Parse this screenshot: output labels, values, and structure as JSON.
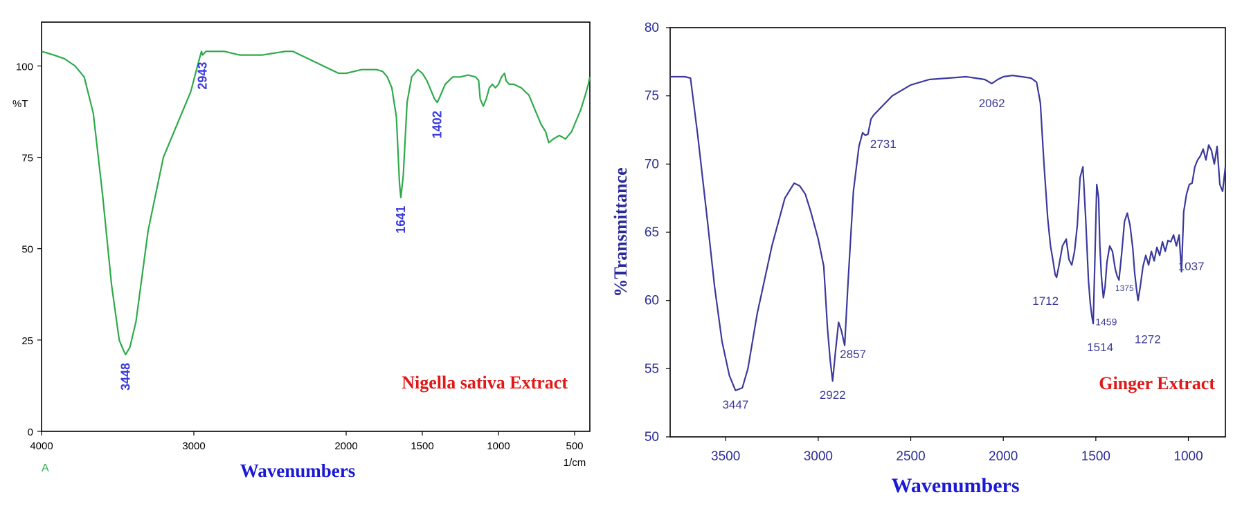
{
  "chart_data": [
    {
      "type": "line",
      "panel": "left",
      "ylabel": "%T",
      "xlabel": "Wavenumbers",
      "xunit": "1/cm",
      "corner_label": "A",
      "annotation": "Nigella sativa Extract",
      "xlim": [
        4000,
        400
      ],
      "ylim": [
        0,
        112
      ],
      "xticks": [
        4000,
        3000,
        2000,
        1500,
        1000,
        500
      ],
      "yticks": [
        0,
        25,
        50,
        75,
        100
      ],
      "line_color": "#2eaa4a",
      "label_color": "#3a3adf",
      "annotation_color": "#e01818",
      "peaks": [
        {
          "label": "3448",
          "x": 3448,
          "y": 21
        },
        {
          "label": "2943",
          "x": 2943,
          "y": 103
        },
        {
          "label": "1641",
          "x": 1641,
          "y": 64
        },
        {
          "label": "1402",
          "x": 1402,
          "y": 90
        }
      ],
      "series": [
        {
          "x": [
            4000,
            3920,
            3850,
            3780,
            3720,
            3660,
            3600,
            3540,
            3490,
            3460,
            3448,
            3420,
            3380,
            3300,
            3200,
            3100,
            3020,
            2970,
            2950,
            2943,
            2920,
            2880,
            2800,
            2700,
            2550,
            2400,
            2350,
            2300,
            2200,
            2100,
            2050,
            2000,
            1950,
            1900,
            1850,
            1800,
            1760,
            1730,
            1700,
            1670,
            1650,
            1641,
            1625,
            1600,
            1570,
            1530,
            1500,
            1470,
            1440,
            1420,
            1402,
            1380,
            1350,
            1300,
            1250,
            1200,
            1150,
            1130,
            1120,
            1100,
            1080,
            1060,
            1040,
            1020,
            1000,
            980,
            960,
            950,
            930,
            900,
            850,
            800,
            760,
            720,
            690,
            670,
            640,
            600,
            560,
            520,
            500,
            460,
            430,
            410,
            400
          ],
          "y": [
            104,
            103,
            102,
            100,
            97,
            87,
            65,
            40,
            25,
            22,
            21,
            23,
            30,
            55,
            75,
            85,
            93,
            101,
            104,
            103,
            104,
            104,
            104,
            103,
            103,
            104,
            104,
            103,
            101,
            99,
            98,
            98,
            98.5,
            99,
            99,
            99,
            98.5,
            97,
            94,
            86,
            68,
            64,
            70,
            90,
            97,
            99,
            98,
            96,
            93,
            91,
            90,
            92,
            95,
            97,
            97,
            97.5,
            97,
            96,
            91,
            89,
            91,
            94,
            95,
            94,
            95,
            97,
            98,
            96,
            95,
            95,
            94,
            92,
            88,
            84,
            82,
            79,
            80,
            81,
            80,
            82,
            84,
            88,
            92,
            95,
            97
          ]
        }
      ]
    },
    {
      "type": "line",
      "panel": "right",
      "ylabel": "%Transmittance",
      "xlabel": "Wavenumbers",
      "annotation": "Ginger Extract",
      "xlim": [
        3800,
        800
      ],
      "ylim": [
        50,
        80
      ],
      "xticks": [
        3500,
        3000,
        2500,
        2000,
        1500,
        1000
      ],
      "yticks": [
        50,
        55,
        60,
        65,
        70,
        75,
        80
      ],
      "line_color": "#3b3a9c",
      "label_color": "#3b3a9c",
      "annotation_color": "#e01818",
      "peaks": [
        {
          "label": "3447",
          "x": 3447,
          "y": 53.4
        },
        {
          "label": "2922",
          "x": 2922,
          "y": 54.1
        },
        {
          "label": "2857",
          "x": 2857,
          "y": 56.7
        },
        {
          "label": "2731",
          "x": 2731,
          "y": 72.2
        },
        {
          "label": "2062",
          "x": 2062,
          "y": 75.9
        },
        {
          "label": "1712",
          "x": 1712,
          "y": 61.7
        },
        {
          "label": "1514",
          "x": 1514,
          "y": 58.3
        },
        {
          "label": "1459",
          "x": 1459,
          "y": 60.2
        },
        {
          "label": "1375",
          "x": 1375,
          "y": 61.5
        },
        {
          "label": "1272",
          "x": 1272,
          "y": 60.0
        },
        {
          "label": "1037",
          "x": 1037,
          "y": 62.1
        }
      ],
      "series": [
        {
          "x": [
            3800,
            3720,
            3690,
            3650,
            3600,
            3560,
            3520,
            3480,
            3447,
            3410,
            3380,
            3330,
            3250,
            3180,
            3130,
            3100,
            3070,
            3040,
            3000,
            2970,
            2950,
            2935,
            2922,
            2905,
            2890,
            2875,
            2857,
            2840,
            2810,
            2780,
            2760,
            2745,
            2731,
            2715,
            2700,
            2650,
            2600,
            2500,
            2400,
            2300,
            2200,
            2150,
            2100,
            2062,
            2030,
            2000,
            1950,
            1900,
            1850,
            1820,
            1800,
            1780,
            1760,
            1745,
            1730,
            1720,
            1712,
            1700,
            1680,
            1660,
            1645,
            1630,
            1615,
            1600,
            1585,
            1570,
            1555,
            1540,
            1530,
            1522,
            1514,
            1505,
            1495,
            1485,
            1478,
            1470,
            1465,
            1459,
            1450,
            1440,
            1425,
            1410,
            1395,
            1385,
            1375,
            1360,
            1345,
            1330,
            1315,
            1300,
            1290,
            1280,
            1272,
            1260,
            1245,
            1230,
            1215,
            1200,
            1185,
            1170,
            1155,
            1140,
            1125,
            1110,
            1095,
            1080,
            1065,
            1050,
            1037,
            1025,
            1010,
            995,
            980,
            965,
            950,
            935,
            920,
            905,
            890,
            875,
            860,
            845,
            830,
            815,
            800
          ],
          "y": [
            76.4,
            76.4,
            76.3,
            72,
            66,
            61,
            57,
            54.5,
            53.4,
            53.6,
            55,
            59,
            64,
            67.5,
            68.6,
            68.4,
            67.8,
            66.5,
            64.5,
            62.5,
            58,
            55.6,
            54.1,
            56.5,
            58.4,
            57.8,
            56.7,
            61,
            68,
            71.3,
            72.3,
            72.1,
            72.2,
            73.3,
            73.6,
            74.3,
            75.0,
            75.8,
            76.2,
            76.3,
            76.4,
            76.3,
            76.2,
            75.9,
            76.2,
            76.4,
            76.5,
            76.4,
            76.3,
            76.0,
            74.5,
            70.0,
            66.0,
            64.0,
            62.8,
            61.9,
            61.7,
            62.5,
            64.0,
            64.5,
            63.0,
            62.6,
            63.6,
            65.5,
            69.0,
            69.8,
            66.0,
            61.5,
            59.8,
            58.9,
            58.3,
            63.0,
            68.5,
            67.5,
            64.0,
            61.8,
            61.0,
            60.2,
            61.0,
            62.8,
            64.0,
            63.6,
            62.3,
            61.8,
            61.5,
            63.5,
            65.8,
            66.4,
            65.5,
            63.8,
            62.0,
            60.8,
            60.0,
            61.0,
            62.5,
            63.3,
            62.6,
            63.6,
            62.9,
            63.9,
            63.3,
            64.3,
            63.6,
            64.4,
            64.3,
            64.8,
            64.0,
            64.8,
            62.1,
            66.5,
            67.8,
            68.5,
            68.6,
            69.8,
            70.3,
            70.6,
            71.1,
            70.3,
            71.4,
            71.0,
            70.0,
            71.3,
            68.5,
            68.0,
            69.8
          ]
        }
      ]
    }
  ]
}
